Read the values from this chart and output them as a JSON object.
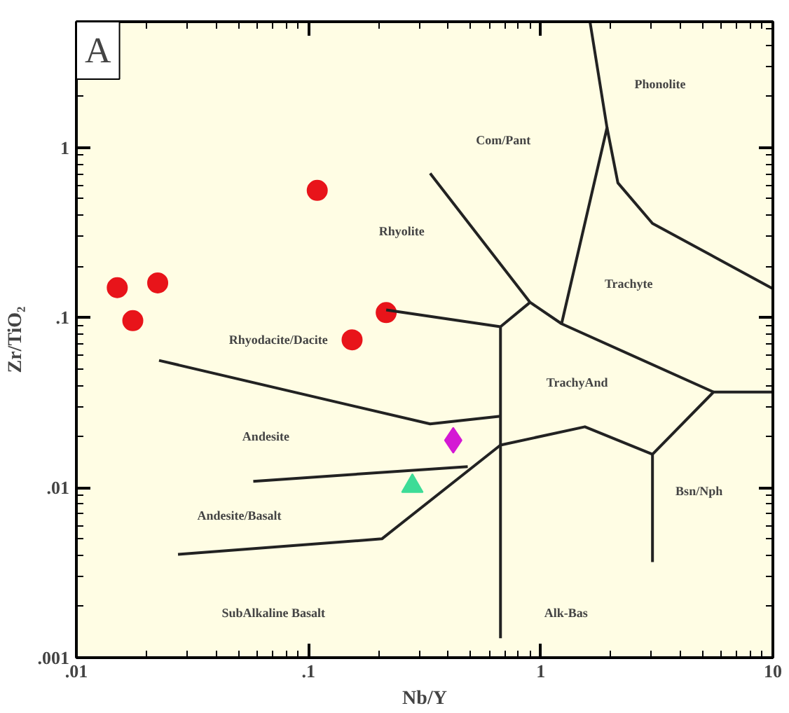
{
  "chart_data": {
    "type": "scatter",
    "xlabel": "Nb/Y",
    "ylabel": "Zr/TiO₂",
    "log": "xy",
    "xlim": [
      0.01,
      10
    ],
    "ylim": [
      0.001,
      5.5
    ],
    "xticks": [
      {
        "value": 0.01,
        "label": ".01"
      },
      {
        "value": 0.1,
        "label": ".1"
      },
      1,
      10
    ],
    "yticks": [
      {
        "value": 0.001,
        "label": ".001"
      },
      {
        "value": 0.01,
        "label": ".01"
      },
      {
        "value": 0.1,
        "label": ".1"
      },
      1
    ],
    "grid": false,
    "series": [
      {
        "type": "scatter",
        "marker": "circle",
        "color": "#e8141a",
        "x": [
          0.015,
          0.0224,
          0.0175,
          0.109,
          0.216,
          0.154
        ],
        "values": [
          0.15,
          0.16,
          0.096,
          0.56,
          0.107,
          0.074
        ]
      },
      {
        "type": "scatter",
        "marker": "diamond",
        "color": "#d418d4",
        "x": [
          0.42
        ],
        "values": [
          0.019
        ]
      },
      {
        "type": "scatter",
        "marker": "triangle",
        "color": "#3ddc97",
        "x": [
          0.28
        ],
        "values": [
          0.0102
        ]
      },
      {
        "type": "line",
        "color": "#222222",
        "x": [
          0.0227,
          0.334,
          0.671
        ],
        "values": [
          0.056,
          0.0237,
          0.0263
        ]
      },
      {
        "type": "line",
        "color": "#222222",
        "x": [
          0.0578,
          0.485
        ],
        "values": [
          0.0109,
          0.0133
        ]
      },
      {
        "type": "line",
        "color": "#222222",
        "x": [
          0.0274,
          0.207,
          0.671,
          1.55,
          3.03,
          5.55,
          10
        ],
        "values": [
          0.00405,
          0.005,
          0.0178,
          0.0228,
          0.0157,
          0.0365,
          0.0365
        ]
      },
      {
        "type": "line",
        "color": "#222222",
        "x": [
          3.03,
          3.03
        ],
        "values": [
          0.0157,
          0.00365
        ]
      },
      {
        "type": "line",
        "color": "#222222",
        "x": [
          0.671,
          0.671
        ],
        "values": [
          0.0884,
          0.0013
        ]
      },
      {
        "type": "line",
        "color": "#222222",
        "x": [
          0.216,
          0.671,
          0.9
        ],
        "values": [
          0.111,
          0.0884,
          0.123
        ]
      },
      {
        "type": "line",
        "color": "#222222",
        "x": [
          0.334,
          0.9,
          1.23,
          5.55
        ],
        "values": [
          0.705,
          0.123,
          0.092,
          0.0365
        ]
      },
      {
        "type": "line",
        "color": "#222222",
        "x": [
          1.23,
          1.93,
          1.63
        ],
        "values": [
          0.092,
          1.31,
          5.5
        ]
      },
      {
        "type": "line",
        "color": "#222222",
        "x": [
          1.93,
          2.15,
          3.03,
          10
        ],
        "values": [
          1.31,
          0.62,
          0.358,
          0.148
        ]
      }
    ],
    "annotations": [
      "A",
      "Com/Pant",
      "Phonolite",
      "Rhyolite",
      "Trachyte",
      "Rhyodacite/Dacite",
      "TrachyAnd",
      "Andesite",
      "Andesite/Basalt",
      "Bsn/Nph",
      "SubAlkaline Basalt",
      "Alk-Bas"
    ]
  }
}
